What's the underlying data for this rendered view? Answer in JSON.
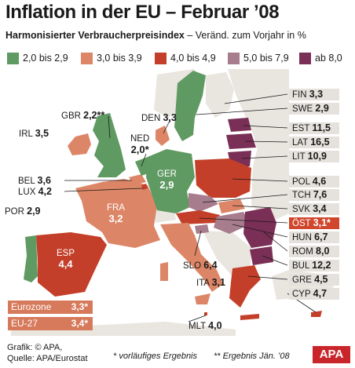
{
  "header": {
    "title": "Inflation in der EU – Februar ’08",
    "subtitle_bold": "Harmonisierter Verbraucherpreisindex",
    "subtitle_rest": " – Veränd. zum Vorjahr in %"
  },
  "legend": [
    {
      "label": "2,0 bis 2,9",
      "color": "#5f9a62"
    },
    {
      "label": "3,0 bis 3,9",
      "color": "#dc8667"
    },
    {
      "label": "4,0 bis 4,9",
      "color": "#c33f29"
    },
    {
      "label": "5,0 bis 7,9",
      "color": "#a77c8c"
    },
    {
      "label": "ab 8,0",
      "color": "#7a2f56"
    }
  ],
  "countries": {
    "GBR": {
      "code": "GBR",
      "value": "2,2**"
    },
    "IRL": {
      "code": "IRL",
      "value": "3,5"
    },
    "DEN": {
      "code": "DEN",
      "value": "3,3"
    },
    "NED": {
      "code": "NED",
      "value": "2,0*"
    },
    "GER": {
      "code": "GER",
      "value": "2,9"
    },
    "BEL": {
      "code": "BEL",
      "value": "3,6"
    },
    "LUX": {
      "code": "LUX",
      "value": "4,2"
    },
    "POR": {
      "code": "POR",
      "value": "2,9"
    },
    "FRA": {
      "code": "FRA",
      "value": "3,2"
    },
    "ESP": {
      "code": "ESP",
      "value": "4,4"
    },
    "SLO": {
      "code": "SLO",
      "value": "6,4"
    },
    "ITA": {
      "code": "ITA",
      "value": "3,1"
    },
    "MLT": {
      "code": "MLT",
      "value": "4,0"
    }
  },
  "side_list": [
    {
      "code": "FIN",
      "value": "3,3"
    },
    {
      "code": "SWE",
      "value": "2,9"
    },
    {
      "code": "EST",
      "value": "11,5"
    },
    {
      "code": "LAT",
      "value": "16,5"
    },
    {
      "code": "LIT",
      "value": "10,9"
    },
    {
      "code": "POL",
      "value": "4,6"
    },
    {
      "code": "TCH",
      "value": "7,6"
    },
    {
      "code": "SVK",
      "value": "3,4"
    },
    {
      "code": "ÖST",
      "value": "3,1*"
    },
    {
      "code": "HUN",
      "value": "6,7"
    },
    {
      "code": "ROM",
      "value": "8,0"
    },
    {
      "code": "BUL",
      "value": "12,2"
    },
    {
      "code": "GRE",
      "value": "4,5"
    },
    {
      "code": "CYP",
      "value": "4,7"
    }
  ],
  "aggregates": [
    {
      "label": "Eurozone",
      "value": "3,3*"
    },
    {
      "label": "EU-27",
      "value": "3,4*"
    }
  ],
  "footer": {
    "credit_line1": "Grafik: © APA,",
    "credit_line2": "Quelle: APA/Eurostat",
    "note_preliminary": "* vorläufiges Ergebnis",
    "note_january": "** Ergebnis Jän. ’08",
    "logo": "APA"
  },
  "colors": {
    "sea": "#ffffff",
    "non_eu_land": "#e9e5df",
    "label_box": "#e5e2dd",
    "highlight": "#d0472e",
    "aggregate_box": "#d77a5c"
  }
}
